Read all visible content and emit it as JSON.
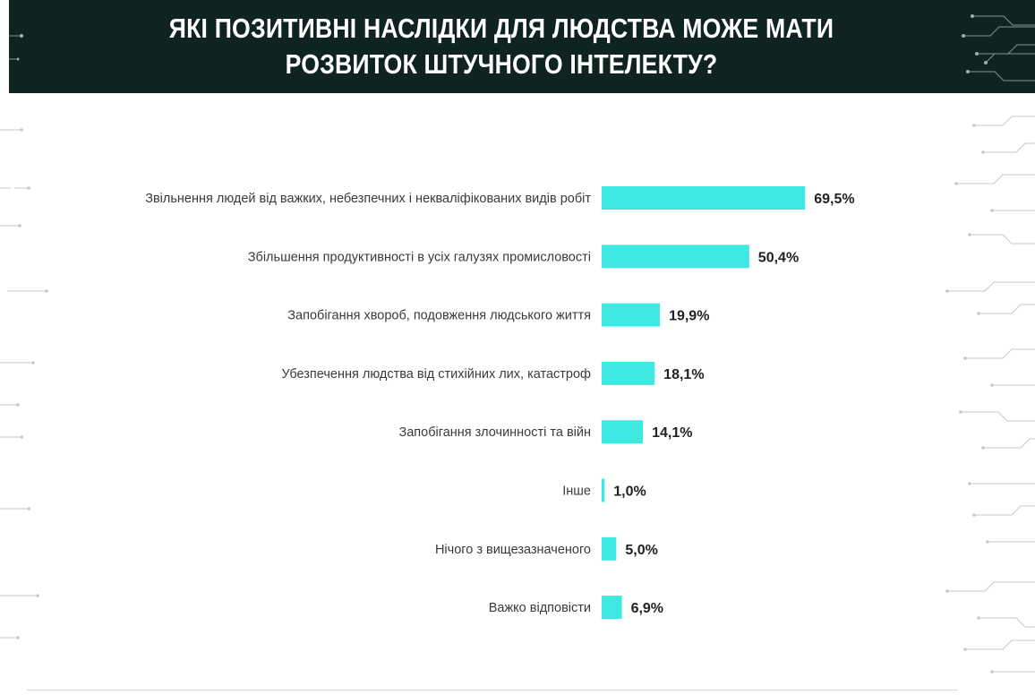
{
  "header": {
    "title_line1": "ЯКІ ПОЗИТИВНІ НАСЛІДКИ ДЛЯ ЛЮДСТВА МОЖЕ МАТИ",
    "title_line2": "РОЗВИТОК ШТУЧНОГО ІНТЕЛЕКТУ?"
  },
  "colors": {
    "header_bg": "#0f2421",
    "bar": "#3fe8e0",
    "circuit": "#b8bfbe"
  },
  "chart_data": {
    "type": "bar",
    "orientation": "horizontal",
    "title": "ЯКІ ПОЗИТИВНІ НАСЛІДКИ ДЛЯ ЛЮДСТВА МОЖЕ МАТИ РОЗВИТОК ШТУЧНОГО ІНТЕЛЕКТУ?",
    "categories": [
      "Звільнення людей від важких, небезпечних і некваліфікованих видів робіт",
      "Збільшення продуктивності в усіх галузях промисловості",
      "Запобігання хвороб, подовження людського життя",
      "Убезпечення людства від стихійних лих, катастроф",
      "Запобігання злочинності та війн",
      "Інше",
      "Нічого з вищезазначеного",
      "Важко відповісти"
    ],
    "values": [
      69.5,
      50.4,
      19.9,
      18.1,
      14.1,
      1.0,
      5.0,
      6.9
    ],
    "value_labels": [
      "69,5%",
      "50,4%",
      "19,9%",
      "18,1%",
      "14,1%",
      "1,0%",
      "5,0%",
      "6,9%"
    ],
    "unit": "%",
    "xlim": [
      0,
      100
    ],
    "grid": false,
    "legend": "none"
  }
}
